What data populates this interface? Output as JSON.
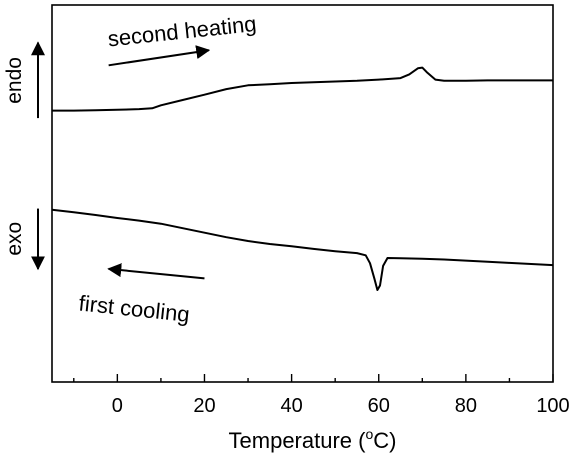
{
  "chart_data": {
    "type": "line",
    "title": "",
    "xlabel": "Temperature (oC)",
    "xlabel_main": "Temperature (",
    "xlabel_sup": "o",
    "xlabel_unit": "C)",
    "ylabel": "",
    "xlim": [
      -15,
      100
    ],
    "ylim": [
      0,
      100
    ],
    "y_tick_labels": false,
    "grid": false,
    "legend": "none",
    "x_ticks": [
      0,
      20,
      40,
      60,
      80,
      100
    ],
    "x_tick_labels": [
      "0",
      "20",
      "40",
      "60",
      "80",
      "100"
    ],
    "line_color": "#000000",
    "series": [
      {
        "points": [
          [
            -15,
            72
          ],
          [
            -10,
            72
          ],
          [
            -5,
            72.1
          ],
          [
            0,
            72.2
          ],
          [
            5,
            72.4
          ],
          [
            8,
            72.6
          ],
          [
            10,
            73.4
          ],
          [
            15,
            74.8
          ],
          [
            20,
            76.2
          ],
          [
            25,
            77.7
          ],
          [
            30,
            78.7
          ],
          [
            35,
            79.0
          ],
          [
            40,
            79.3
          ],
          [
            45,
            79.5
          ],
          [
            50,
            79.7
          ],
          [
            55,
            79.9
          ],
          [
            60,
            80.2
          ],
          [
            65,
            80.6
          ],
          [
            67,
            81.6
          ],
          [
            69,
            83.2
          ],
          [
            70,
            83.4
          ],
          [
            71,
            82.2
          ],
          [
            73,
            80.2
          ],
          [
            75,
            79.9
          ],
          [
            80,
            79.9
          ],
          [
            85,
            80.0
          ],
          [
            90,
            80.0
          ],
          [
            95,
            80.0
          ],
          [
            100,
            80.0
          ]
        ]
      },
      {
        "points": [
          [
            -15,
            45.7
          ],
          [
            -10,
            45.0
          ],
          [
            -5,
            44.3
          ],
          [
            0,
            43.5
          ],
          [
            5,
            42.8
          ],
          [
            10,
            42.0
          ],
          [
            15,
            40.8
          ],
          [
            20,
            39.6
          ],
          [
            25,
            38.4
          ],
          [
            30,
            37.4
          ],
          [
            35,
            36.6
          ],
          [
            40,
            36.0
          ],
          [
            45,
            35.3
          ],
          [
            50,
            34.7
          ],
          [
            55,
            34.2
          ],
          [
            57,
            33.6
          ],
          [
            58,
            31.5
          ],
          [
            59,
            27.4
          ],
          [
            59.7,
            24.4
          ],
          [
            60.3,
            25.6
          ],
          [
            61,
            30.8
          ],
          [
            62,
            32.9
          ],
          [
            65,
            32.8
          ],
          [
            70,
            32.7
          ],
          [
            75,
            32.5
          ],
          [
            80,
            32.2
          ],
          [
            85,
            31.9
          ],
          [
            90,
            31.6
          ],
          [
            95,
            31.3
          ],
          [
            100,
            31.0
          ]
        ]
      }
    ],
    "annotations": [
      {
        "text": "second heating",
        "x": -2,
        "y": 89,
        "rotate": -6
      },
      {
        "text": "first cooling",
        "x": -9,
        "y": 19,
        "rotate": 6
      }
    ],
    "arrows": [
      {
        "from": [
          -2,
          84
        ],
        "to": [
          21,
          88
        ]
      },
      {
        "from": [
          20,
          27.5
        ],
        "to": [
          -2,
          30
        ]
      }
    ],
    "side_labels": [
      {
        "text": "endo",
        "direction": "up",
        "y_range": [
          70,
          90
        ]
      },
      {
        "text": "exo",
        "direction": "down",
        "y_range": [
          30,
          46
        ]
      }
    ]
  }
}
